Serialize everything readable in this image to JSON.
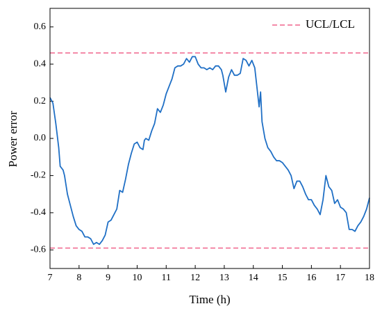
{
  "chart_data": {
    "type": "line",
    "xlabel": "Time (h)",
    "ylabel": "Power error",
    "xlim": [
      7,
      18
    ],
    "ylim": [
      -0.7,
      0.7
    ],
    "xticks": [
      7,
      8,
      9,
      10,
      11,
      12,
      13,
      14,
      15,
      16,
      17,
      18
    ],
    "yticks": [
      -0.6,
      -0.4,
      -0.2,
      {
        "value": 0,
        "label": "0.0"
      },
      0.2,
      0.4,
      0.6
    ],
    "legend": "upper right",
    "x": [
      7.0,
      7.1,
      7.2,
      7.3,
      7.35,
      7.45,
      7.5,
      7.6,
      7.7,
      7.8,
      7.9,
      8.0,
      8.1,
      8.2,
      8.3,
      8.4,
      8.5,
      8.6,
      8.7,
      8.8,
      8.9,
      9.0,
      9.1,
      9.2,
      9.3,
      9.4,
      9.5,
      9.6,
      9.7,
      9.8,
      9.9,
      10.0,
      10.1,
      10.2,
      10.25,
      10.3,
      10.4,
      10.5,
      10.6,
      10.7,
      10.8,
      10.9,
      11.0,
      11.1,
      11.2,
      11.3,
      11.4,
      11.5,
      11.6,
      11.7,
      11.8,
      11.9,
      12.0,
      12.1,
      12.2,
      12.3,
      12.4,
      12.5,
      12.6,
      12.7,
      12.8,
      12.9,
      12.95,
      13.05,
      13.15,
      13.25,
      13.35,
      13.45,
      13.55,
      13.65,
      13.75,
      13.85,
      13.95,
      14.05,
      14.2,
      14.25,
      14.3,
      14.4,
      14.5,
      14.6,
      14.7,
      14.8,
      14.9,
      15.0,
      15.1,
      15.2,
      15.3,
      15.4,
      15.5,
      15.6,
      15.7,
      15.8,
      15.9,
      16.0,
      16.1,
      16.2,
      16.3,
      16.4,
      16.5,
      16.6,
      16.7,
      16.8,
      16.9,
      17.0,
      17.1,
      17.2,
      17.3,
      17.4,
      17.5,
      17.6,
      17.7,
      17.8,
      17.9,
      18.0
    ],
    "series": [
      {
        "color": "#1f6fc5",
        "values": [
          0.22,
          0.19,
          0.08,
          -0.05,
          -0.15,
          -0.17,
          -0.2,
          -0.3,
          -0.36,
          -0.42,
          -0.47,
          -0.49,
          -0.5,
          -0.53,
          -0.53,
          -0.54,
          -0.57,
          -0.56,
          -0.57,
          -0.55,
          -0.52,
          -0.45,
          -0.44,
          -0.41,
          -0.38,
          -0.28,
          -0.29,
          -0.22,
          -0.14,
          -0.08,
          -0.03,
          -0.02,
          -0.05,
          -0.06,
          -0.01,
          0.0,
          -0.01,
          0.04,
          0.08,
          0.16,
          0.14,
          0.18,
          0.24,
          0.28,
          0.32,
          0.38,
          0.39,
          0.39,
          0.4,
          0.43,
          0.41,
          0.44,
          0.44,
          0.4,
          0.38,
          0.38,
          0.37,
          0.38,
          0.37,
          0.39,
          0.39,
          0.37,
          0.34,
          0.25,
          0.33,
          0.37,
          0.34,
          0.34,
          0.35,
          0.43,
          0.42,
          0.39,
          0.42,
          0.38,
          0.17,
          0.25,
          0.09,
          0.0,
          -0.05,
          -0.07,
          -0.1,
          -0.12,
          -0.12,
          -0.13,
          -0.15,
          -0.17,
          -0.2,
          -0.27,
          -0.23,
          -0.23,
          -0.26,
          -0.3,
          -0.33,
          -0.33,
          -0.36,
          -0.38,
          -0.41,
          -0.33,
          -0.2,
          -0.26,
          -0.28,
          -0.35,
          -0.33,
          -0.37,
          -0.38,
          -0.4,
          -0.49,
          -0.49,
          -0.5,
          -0.47,
          -0.45,
          -0.42,
          -0.38,
          -0.32
        ]
      }
    ],
    "control_limits": {
      "name": "UCL/LCL",
      "color": "#f0648c",
      "values": [
        0.46,
        -0.59
      ]
    }
  }
}
